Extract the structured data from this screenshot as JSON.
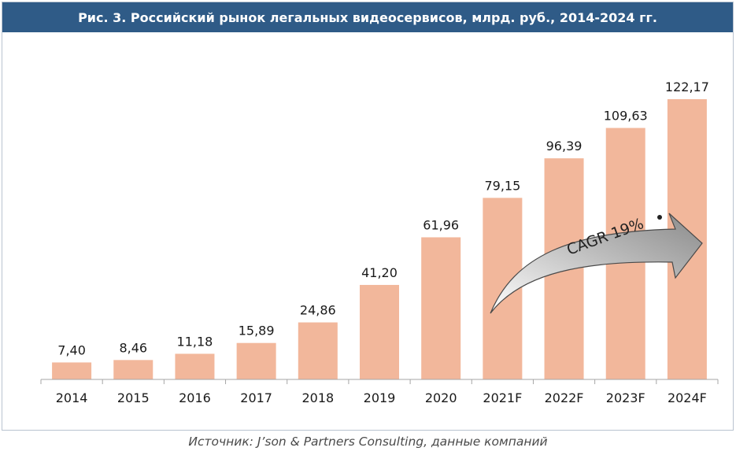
{
  "chart_data": {
    "type": "bar",
    "title": "Рис. 3. Российский рынок легальных видеосервисов, млрд. руб., 2014-2024 гг.",
    "categories": [
      "2014",
      "2015",
      "2016",
      "2017",
      "2018",
      "2019",
      "2020",
      "2021F",
      "2022F",
      "2023F",
      "2024F"
    ],
    "values": [
      7.4,
      8.46,
      11.18,
      15.89,
      24.86,
      41.2,
      61.96,
      79.15,
      96.39,
      109.63,
      122.17
    ],
    "value_labels": [
      "7,40",
      "8,46",
      "11,18",
      "15,89",
      "24,86",
      "41,20",
      "61,96",
      "79,15",
      "96,39",
      "109,63",
      "122,17"
    ],
    "ylim": [
      0,
      122.17
    ],
    "xlabel": "",
    "ylabel": "",
    "annotation": "CAGR 19%",
    "colors": {
      "bar": "#f2b79b",
      "title_bg": "#2f5b87",
      "arrow_fill": "#9b9b9b"
    }
  },
  "source": "Источник: J’son & Partners Consulting, данные компаний"
}
